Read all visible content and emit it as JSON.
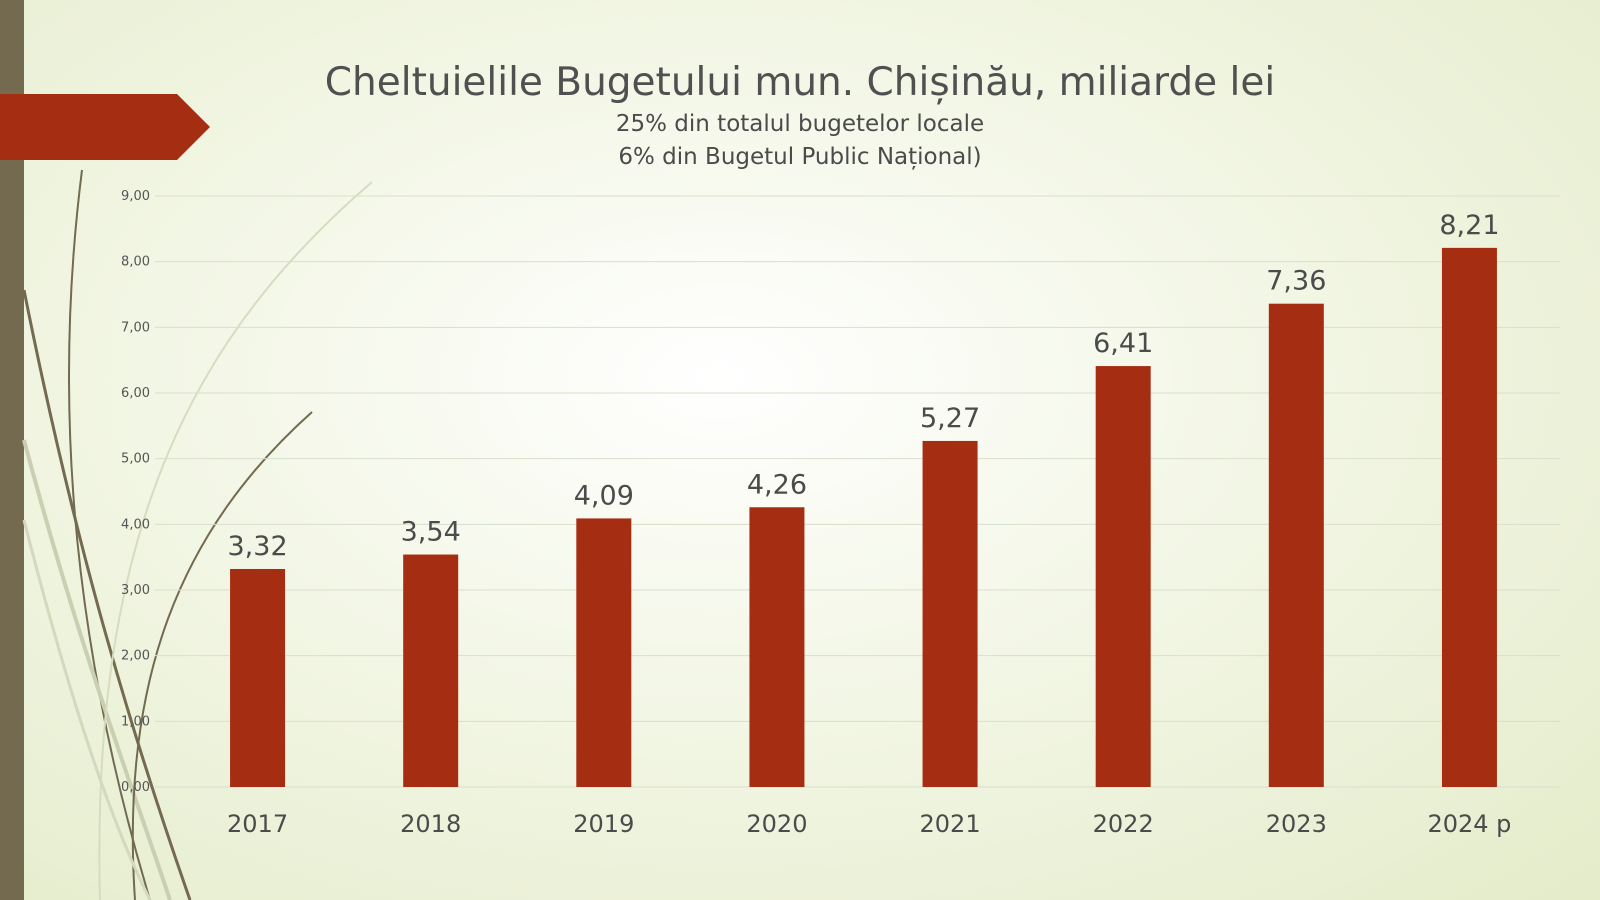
{
  "colors": {
    "bar": "#a52d12",
    "band": "#736a50",
    "tab": "#a52d12",
    "grid": "#d9dfcb",
    "text": "#4b4b4b"
  },
  "decoration": {
    "left_band": "olive-band",
    "arrow_tab": "red-arrow-tab",
    "curves": "grass-stroke-decoration"
  },
  "chart_data": {
    "type": "bar",
    "title": "Cheltuielile Bugetului mun. Chișinău, miliarde lei",
    "subtitle_lines": [
      "25% din totalul bugetelor locale",
      "6% din Bugetul Public Național)"
    ],
    "categories": [
      "2017",
      "2018",
      "2019",
      "2020",
      "2021",
      "2022",
      "2023",
      "2024 p"
    ],
    "values": [
      3.32,
      3.54,
      4.09,
      4.26,
      5.27,
      6.41,
      7.36,
      8.21
    ],
    "data_labels": [
      "3,32",
      "3,54",
      "4,09",
      "4,26",
      "5,27",
      "6,41",
      "7,36",
      "8,21"
    ],
    "ylim": [
      0,
      9
    ],
    "y_ticks": [
      0,
      1,
      2,
      3,
      4,
      5,
      6,
      7,
      8,
      9
    ],
    "y_tick_labels": [
      "0,00",
      "1,00",
      "2,00",
      "3,00",
      "4,00",
      "5,00",
      "6,00",
      "7,00",
      "8,00",
      "9,00"
    ],
    "grid": true,
    "legend": "none",
    "xlabel": "",
    "ylabel": ""
  }
}
